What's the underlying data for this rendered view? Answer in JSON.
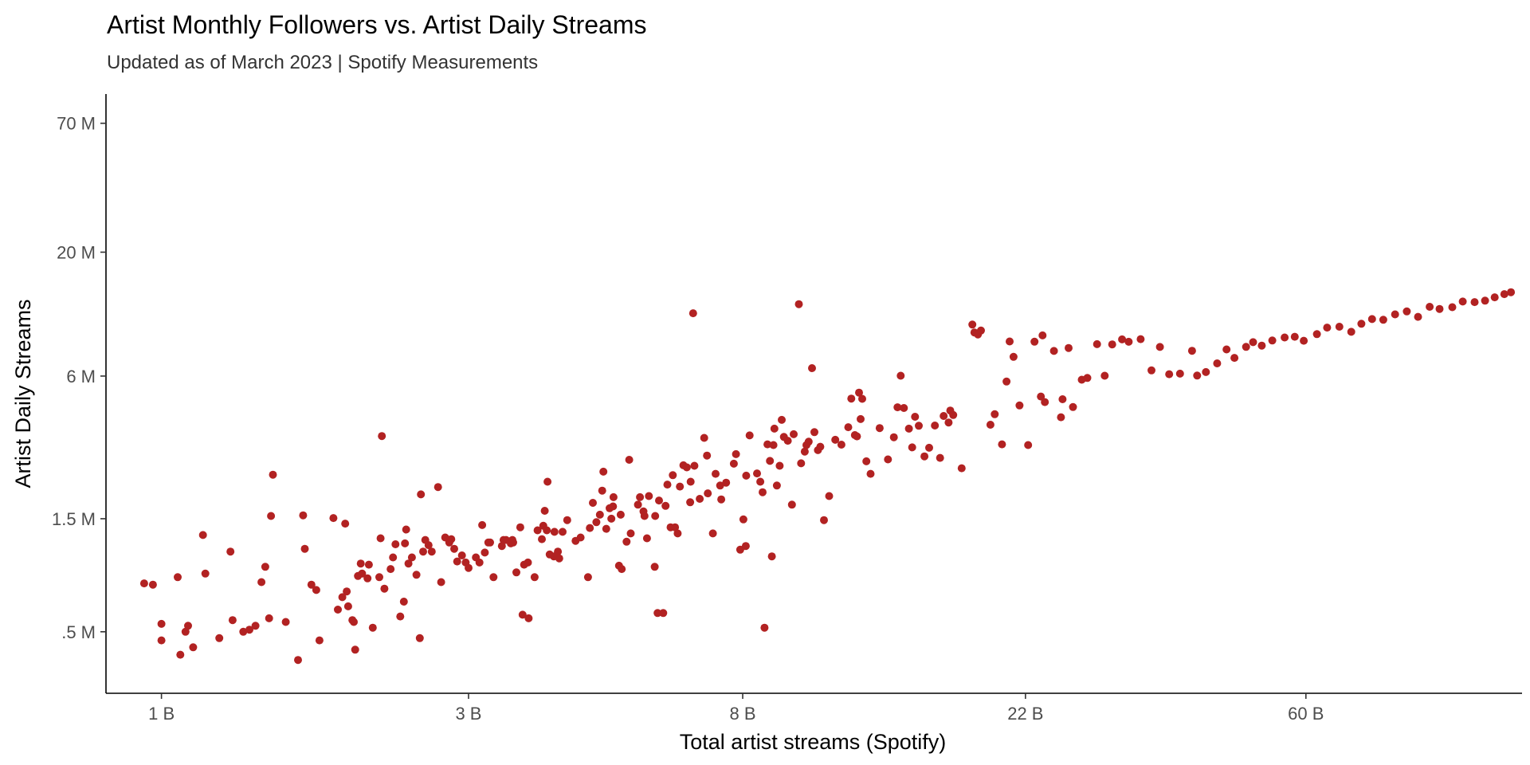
{
  "chart_data": {
    "type": "scatter",
    "title": "Artist Monthly Followers vs. Artist Daily Streams",
    "subtitle": "Updated as of March 2023 | Spotify Measurements",
    "xlabel": "Total artist streams (Spotify)",
    "ylabel": "Artist Daily Streams",
    "x_scale": "log",
    "y_scale": "log",
    "x_unit": "billions of streams",
    "y_unit": "millions of daily streams",
    "x_ticks": [
      {
        "value": 1,
        "label": "1 B"
      },
      {
        "value": 3,
        "label": "3 B"
      },
      {
        "value": 8,
        "label": "8 B"
      },
      {
        "value": 22,
        "label": "22 B"
      },
      {
        "value": 60,
        "label": "60 B"
      }
    ],
    "y_ticks": [
      {
        "value": 0.5,
        "label": ".5 M"
      },
      {
        "value": 1.5,
        "label": "1.5 M"
      },
      {
        "value": 6,
        "label": "6 M"
      },
      {
        "value": 20,
        "label": "20 M"
      },
      {
        "value": 70,
        "label": "70 M"
      }
    ],
    "xlim": [
      0.82,
      130
    ],
    "ylim": [
      0.275,
      93
    ],
    "grid": false,
    "legend": "none",
    "point_color": "#b22222",
    "points": [
      [
        0.94,
        0.8
      ],
      [
        0.97,
        0.79
      ],
      [
        1.0,
        0.54
      ],
      [
        1.0,
        0.46
      ],
      [
        1.06,
        0.85
      ],
      [
        1.07,
        0.4
      ],
      [
        1.09,
        0.5
      ],
      [
        1.1,
        0.53
      ],
      [
        1.12,
        0.43
      ],
      [
        1.16,
        1.28
      ],
      [
        1.17,
        0.88
      ],
      [
        1.23,
        0.47
      ],
      [
        1.28,
        1.09
      ],
      [
        1.29,
        0.56
      ],
      [
        1.34,
        0.5
      ],
      [
        1.37,
        0.51
      ],
      [
        1.4,
        0.53
      ],
      [
        1.43,
        0.81
      ],
      [
        1.45,
        0.94
      ],
      [
        1.47,
        0.57
      ],
      [
        1.48,
        1.54
      ],
      [
        1.49,
        2.3
      ],
      [
        1.56,
        0.55
      ],
      [
        1.63,
        0.38
      ],
      [
        1.66,
        1.55
      ],
      [
        1.67,
        1.12
      ],
      [
        1.71,
        0.79
      ],
      [
        1.74,
        0.75
      ],
      [
        1.76,
        0.46
      ],
      [
        1.85,
        1.51
      ],
      [
        1.88,
        0.62
      ],
      [
        1.91,
        0.7
      ],
      [
        1.93,
        1.43
      ],
      [
        1.94,
        0.74
      ],
      [
        1.95,
        0.64
      ],
      [
        1.98,
        0.56
      ],
      [
        1.99,
        0.55
      ],
      [
        2.0,
        0.42
      ],
      [
        2.02,
        0.86
      ],
      [
        2.04,
        0.97
      ],
      [
        2.05,
        0.88
      ],
      [
        2.09,
        0.84
      ],
      [
        2.1,
        0.96
      ],
      [
        2.13,
        0.52
      ],
      [
        2.18,
        0.85
      ],
      [
        2.19,
        1.24
      ],
      [
        2.2,
        3.35
      ],
      [
        2.22,
        0.76
      ],
      [
        2.27,
        0.92
      ],
      [
        2.29,
        1.03
      ],
      [
        2.31,
        1.17
      ],
      [
        2.35,
        0.58
      ],
      [
        2.38,
        0.67
      ],
      [
        2.39,
        1.18
      ],
      [
        2.4,
        1.35
      ],
      [
        2.42,
        0.97
      ],
      [
        2.45,
        1.03
      ],
      [
        2.49,
        0.87
      ],
      [
        2.52,
        0.47
      ],
      [
        2.53,
        1.9
      ],
      [
        2.55,
        1.09
      ],
      [
        2.57,
        1.22
      ],
      [
        2.6,
        1.16
      ],
      [
        2.63,
        1.09
      ],
      [
        2.69,
        2.04
      ],
      [
        2.72,
        0.81
      ],
      [
        2.76,
        1.25
      ],
      [
        2.8,
        1.19
      ],
      [
        2.82,
        1.23
      ],
      [
        2.85,
        1.12
      ],
      [
        2.88,
        0.99
      ],
      [
        2.93,
        1.05
      ],
      [
        2.97,
        0.98
      ],
      [
        3.0,
        0.93
      ],
      [
        3.08,
        1.03
      ],
      [
        3.12,
        0.98
      ],
      [
        3.15,
        1.41
      ],
      [
        3.18,
        1.08
      ],
      [
        3.22,
        1.19
      ],
      [
        3.24,
        1.19
      ],
      [
        3.28,
        0.85
      ],
      [
        3.38,
        1.15
      ],
      [
        3.4,
        1.22
      ],
      [
        3.43,
        1.22
      ],
      [
        3.49,
        1.18
      ],
      [
        3.51,
        1.22
      ],
      [
        3.52,
        1.19
      ],
      [
        3.56,
        0.89
      ],
      [
        3.61,
        1.38
      ],
      [
        3.64,
        0.59
      ],
      [
        3.66,
        0.96
      ],
      [
        3.71,
        0.98
      ],
      [
        3.72,
        0.57
      ],
      [
        3.8,
        0.85
      ],
      [
        3.84,
        1.34
      ],
      [
        3.9,
        1.23
      ],
      [
        3.92,
        1.4
      ],
      [
        3.94,
        1.62
      ],
      [
        3.97,
        1.34
      ],
      [
        3.98,
        2.15
      ],
      [
        4.01,
        1.06
      ],
      [
        4.07,
        1.04
      ],
      [
        4.08,
        1.32
      ],
      [
        4.13,
        1.09
      ],
      [
        4.15,
        1.02
      ],
      [
        4.2,
        1.32
      ],
      [
        4.27,
        1.48
      ],
      [
        4.4,
        1.21
      ],
      [
        4.48,
        1.25
      ],
      [
        4.6,
        0.85
      ],
      [
        4.63,
        1.37
      ],
      [
        4.68,
        1.75
      ],
      [
        4.74,
        1.45
      ],
      [
        4.8,
        1.56
      ],
      [
        4.84,
        1.97
      ],
      [
        4.86,
        2.37
      ],
      [
        4.91,
        1.36
      ],
      [
        4.97,
        1.66
      ],
      [
        5.0,
        1.5
      ],
      [
        5.03,
        1.69
      ],
      [
        5.04,
        1.85
      ],
      [
        5.14,
        0.95
      ],
      [
        5.17,
        1.56
      ],
      [
        5.19,
        0.92
      ],
      [
        5.28,
        1.2
      ],
      [
        5.33,
        2.66
      ],
      [
        5.36,
        1.3
      ],
      [
        5.5,
        1.72
      ],
      [
        5.54,
        1.85
      ],
      [
        5.61,
        1.61
      ],
      [
        5.63,
        1.54
      ],
      [
        5.68,
        1.24
      ],
      [
        5.72,
        1.87
      ],
      [
        5.84,
        0.94
      ],
      [
        5.85,
        1.54
      ],
      [
        5.9,
        0.6
      ],
      [
        5.93,
        1.79
      ],
      [
        6.02,
        0.6
      ],
      [
        6.07,
        1.7
      ],
      [
        6.11,
        2.09
      ],
      [
        6.18,
        1.38
      ],
      [
        6.23,
        2.29
      ],
      [
        6.28,
        1.38
      ],
      [
        6.34,
        1.3
      ],
      [
        6.39,
        2.05
      ],
      [
        6.47,
        2.52
      ],
      [
        6.55,
        2.47
      ],
      [
        6.63,
        1.76
      ],
      [
        6.64,
        2.15
      ],
      [
        6.7,
        11.05
      ],
      [
        6.73,
        2.51
      ],
      [
        6.86,
        1.82
      ],
      [
        6.97,
        3.29
      ],
      [
        7.04,
        2.77
      ],
      [
        7.06,
        1.92
      ],
      [
        7.19,
        1.3
      ],
      [
        7.26,
        2.32
      ],
      [
        7.38,
        2.07
      ],
      [
        7.41,
        1.81
      ],
      [
        7.54,
        2.13
      ],
      [
        7.75,
        2.56
      ],
      [
        7.81,
        2.81
      ],
      [
        7.93,
        1.11
      ],
      [
        8.02,
        1.49
      ],
      [
        8.09,
        1.15
      ],
      [
        8.1,
        2.28
      ],
      [
        8.2,
        3.37
      ],
      [
        8.42,
        2.33
      ],
      [
        8.52,
        2.15
      ],
      [
        8.59,
        1.94
      ],
      [
        8.65,
        0.52
      ],
      [
        8.74,
        3.09
      ],
      [
        8.82,
        2.63
      ],
      [
        8.88,
        1.04
      ],
      [
        8.93,
        3.07
      ],
      [
        8.96,
        3.6
      ],
      [
        9.04,
        2.07
      ],
      [
        9.13,
        2.51
      ],
      [
        9.2,
        3.92
      ],
      [
        9.27,
        3.32
      ],
      [
        9.4,
        3.2
      ],
      [
        9.54,
        1.72
      ],
      [
        9.6,
        3.41
      ],
      [
        9.78,
        12.07
      ],
      [
        9.86,
        2.57
      ],
      [
        9.99,
        2.88
      ],
      [
        10.05,
        3.07
      ],
      [
        10.13,
        3.17
      ],
      [
        10.25,
        6.48
      ],
      [
        10.34,
        3.48
      ],
      [
        10.47,
        2.92
      ],
      [
        10.56,
        3.02
      ],
      [
        10.7,
        1.48
      ],
      [
        10.9,
        1.87
      ],
      [
        11.14,
        3.23
      ],
      [
        11.39,
        3.08
      ],
      [
        11.67,
        3.65
      ],
      [
        11.8,
        4.82
      ],
      [
        11.95,
        3.38
      ],
      [
        12.04,
        3.34
      ],
      [
        12.13,
        5.11
      ],
      [
        12.2,
        3.95
      ],
      [
        12.27,
        4.81
      ],
      [
        12.45,
        2.62
      ],
      [
        12.64,
        2.32
      ],
      [
        13.06,
        3.62
      ],
      [
        13.45,
        2.67
      ],
      [
        13.74,
        3.31
      ],
      [
        13.92,
        4.43
      ],
      [
        14.08,
        6.02
      ],
      [
        14.24,
        4.4
      ],
      [
        14.5,
        3.6
      ],
      [
        14.67,
        3.0
      ],
      [
        14.82,
        4.04
      ],
      [
        15.02,
        3.7
      ],
      [
        15.33,
        2.75
      ],
      [
        15.59,
        2.99
      ],
      [
        15.91,
        3.71
      ],
      [
        16.21,
        2.71
      ],
      [
        16.42,
        4.07
      ],
      [
        16.71,
        3.82
      ],
      [
        16.81,
        4.29
      ],
      [
        16.99,
        4.11
      ],
      [
        17.51,
        2.45
      ],
      [
        18.19,
        9.9
      ],
      [
        18.33,
        9.17
      ],
      [
        18.56,
        8.99
      ],
      [
        18.76,
        9.34
      ],
      [
        19.41,
        3.74
      ],
      [
        19.71,
        4.14
      ],
      [
        20.23,
        3.09
      ],
      [
        20.56,
        5.69
      ],
      [
        20.79,
        8.4
      ],
      [
        21.08,
        7.23
      ],
      [
        21.54,
        4.51
      ],
      [
        22.21,
        3.07
      ],
      [
        22.72,
        8.38
      ],
      [
        23.25,
        4.92
      ],
      [
        23.39,
        8.91
      ],
      [
        23.58,
        4.66
      ],
      [
        24.36,
        7.66
      ],
      [
        24.98,
        4.02
      ],
      [
        25.12,
        4.79
      ],
      [
        25.67,
        7.88
      ],
      [
        26.08,
        4.44
      ],
      [
        26.91,
        5.79
      ],
      [
        27.45,
        5.89
      ],
      [
        28.42,
        8.18
      ],
      [
        29.21,
        6.02
      ],
      [
        30.0,
        8.16
      ],
      [
        31.08,
        8.57
      ],
      [
        31.83,
        8.37
      ],
      [
        33.22,
        8.59
      ],
      [
        34.53,
        6.34
      ],
      [
        35.59,
        7.96
      ],
      [
        36.79,
        6.11
      ],
      [
        38.24,
        6.14
      ],
      [
        39.92,
        7.67
      ],
      [
        40.66,
        6.03
      ],
      [
        41.95,
        6.24
      ],
      [
        43.68,
        6.79
      ],
      [
        45.17,
        7.77
      ],
      [
        46.46,
        7.16
      ],
      [
        48.44,
        7.97
      ],
      [
        49.67,
        8.34
      ],
      [
        51.23,
        8.07
      ],
      [
        53.2,
        8.48
      ],
      [
        55.61,
        8.73
      ],
      [
        57.66,
        8.79
      ],
      [
        59.54,
        8.46
      ],
      [
        62.41,
        9.02
      ],
      [
        64.73,
        9.61
      ],
      [
        67.64,
        9.69
      ],
      [
        70.56,
        9.22
      ],
      [
        73.18,
        9.97
      ],
      [
        76.03,
        10.44
      ],
      [
        79.14,
        10.37
      ],
      [
        82.54,
        10.93
      ],
      [
        86.09,
        11.25
      ],
      [
        89.61,
        10.67
      ],
      [
        93.43,
        11.76
      ],
      [
        96.77,
        11.52
      ],
      [
        101.29,
        11.72
      ],
      [
        105.16,
        12.38
      ],
      [
        109.72,
        12.31
      ],
      [
        113.88,
        12.49
      ],
      [
        117.89,
        12.9
      ],
      [
        122.04,
        13.3
      ],
      [
        124.94,
        13.55
      ]
    ]
  }
}
